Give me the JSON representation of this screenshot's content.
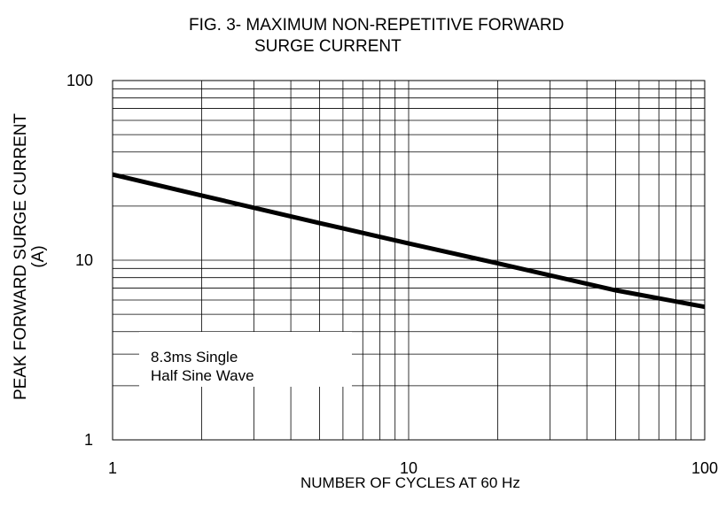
{
  "title_line1": "FIG. 3- MAXIMUM NON-REPETITIVE FORWARD",
  "title_line2": "SURGE CURRENT",
  "ylabel_line1": "PEAK FORWARD SURGE CURRENT",
  "ylabel_line2": "(A)",
  "xlabel": "NUMBER OF CYCLES AT 60 Hz",
  "annotation": [
    "8.3ms Single",
    "Half Sine Wave"
  ],
  "chart_data": {
    "type": "line",
    "title": "FIG. 3- MAXIMUM NON-REPETITIVE FORWARD SURGE CURRENT",
    "xlabel": "NUMBER OF CYCLES AT 60 Hz",
    "ylabel": "PEAK FORWARD SURGE CURRENT (A)",
    "xscale": "log",
    "yscale": "log",
    "xlim": [
      1,
      100
    ],
    "ylim": [
      1,
      100
    ],
    "xticks": [
      "1",
      "10",
      "100"
    ],
    "yticks": [
      "1",
      "10",
      "100"
    ],
    "grid": true,
    "series": [
      {
        "x": [
          1,
          2,
          5,
          10,
          20,
          50,
          100
        ],
        "y": [
          30,
          22.9,
          16.1,
          12.4,
          9.6,
          6.8,
          5.5
        ]
      }
    ],
    "annotations": [
      "8.3ms Single",
      "Half Sine Wave"
    ]
  }
}
